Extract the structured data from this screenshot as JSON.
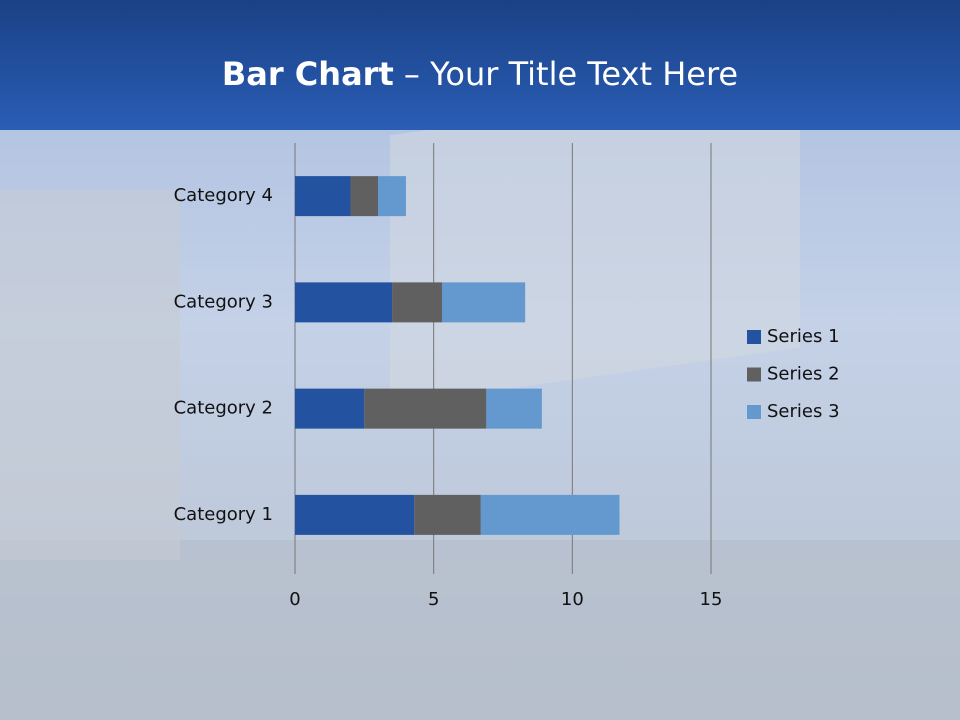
{
  "chart_data": {
    "type": "bar",
    "orientation": "horizontal",
    "stacked": true,
    "title_emphasis": "Bar Chart",
    "title": "– Your Title Text Here",
    "categories": [
      "Category 1",
      "Category 2",
      "Category 3",
      "Category 4"
    ],
    "series": [
      {
        "name": "Series 1",
        "color": "#2352a0",
        "values": [
          4.3,
          2.5,
          3.5,
          2
        ]
      },
      {
        "name": "Series 2",
        "color": "#606060",
        "values": [
          2.4,
          4.4,
          1.8,
          1
        ]
      },
      {
        "name": "Series 3",
        "color": "#6399cf",
        "values": [
          5,
          2,
          3,
          1
        ]
      }
    ],
    "xlim": [
      0,
      15
    ],
    "xticks": [
      0,
      5,
      10,
      15
    ],
    "grid": true,
    "legend": "right"
  }
}
